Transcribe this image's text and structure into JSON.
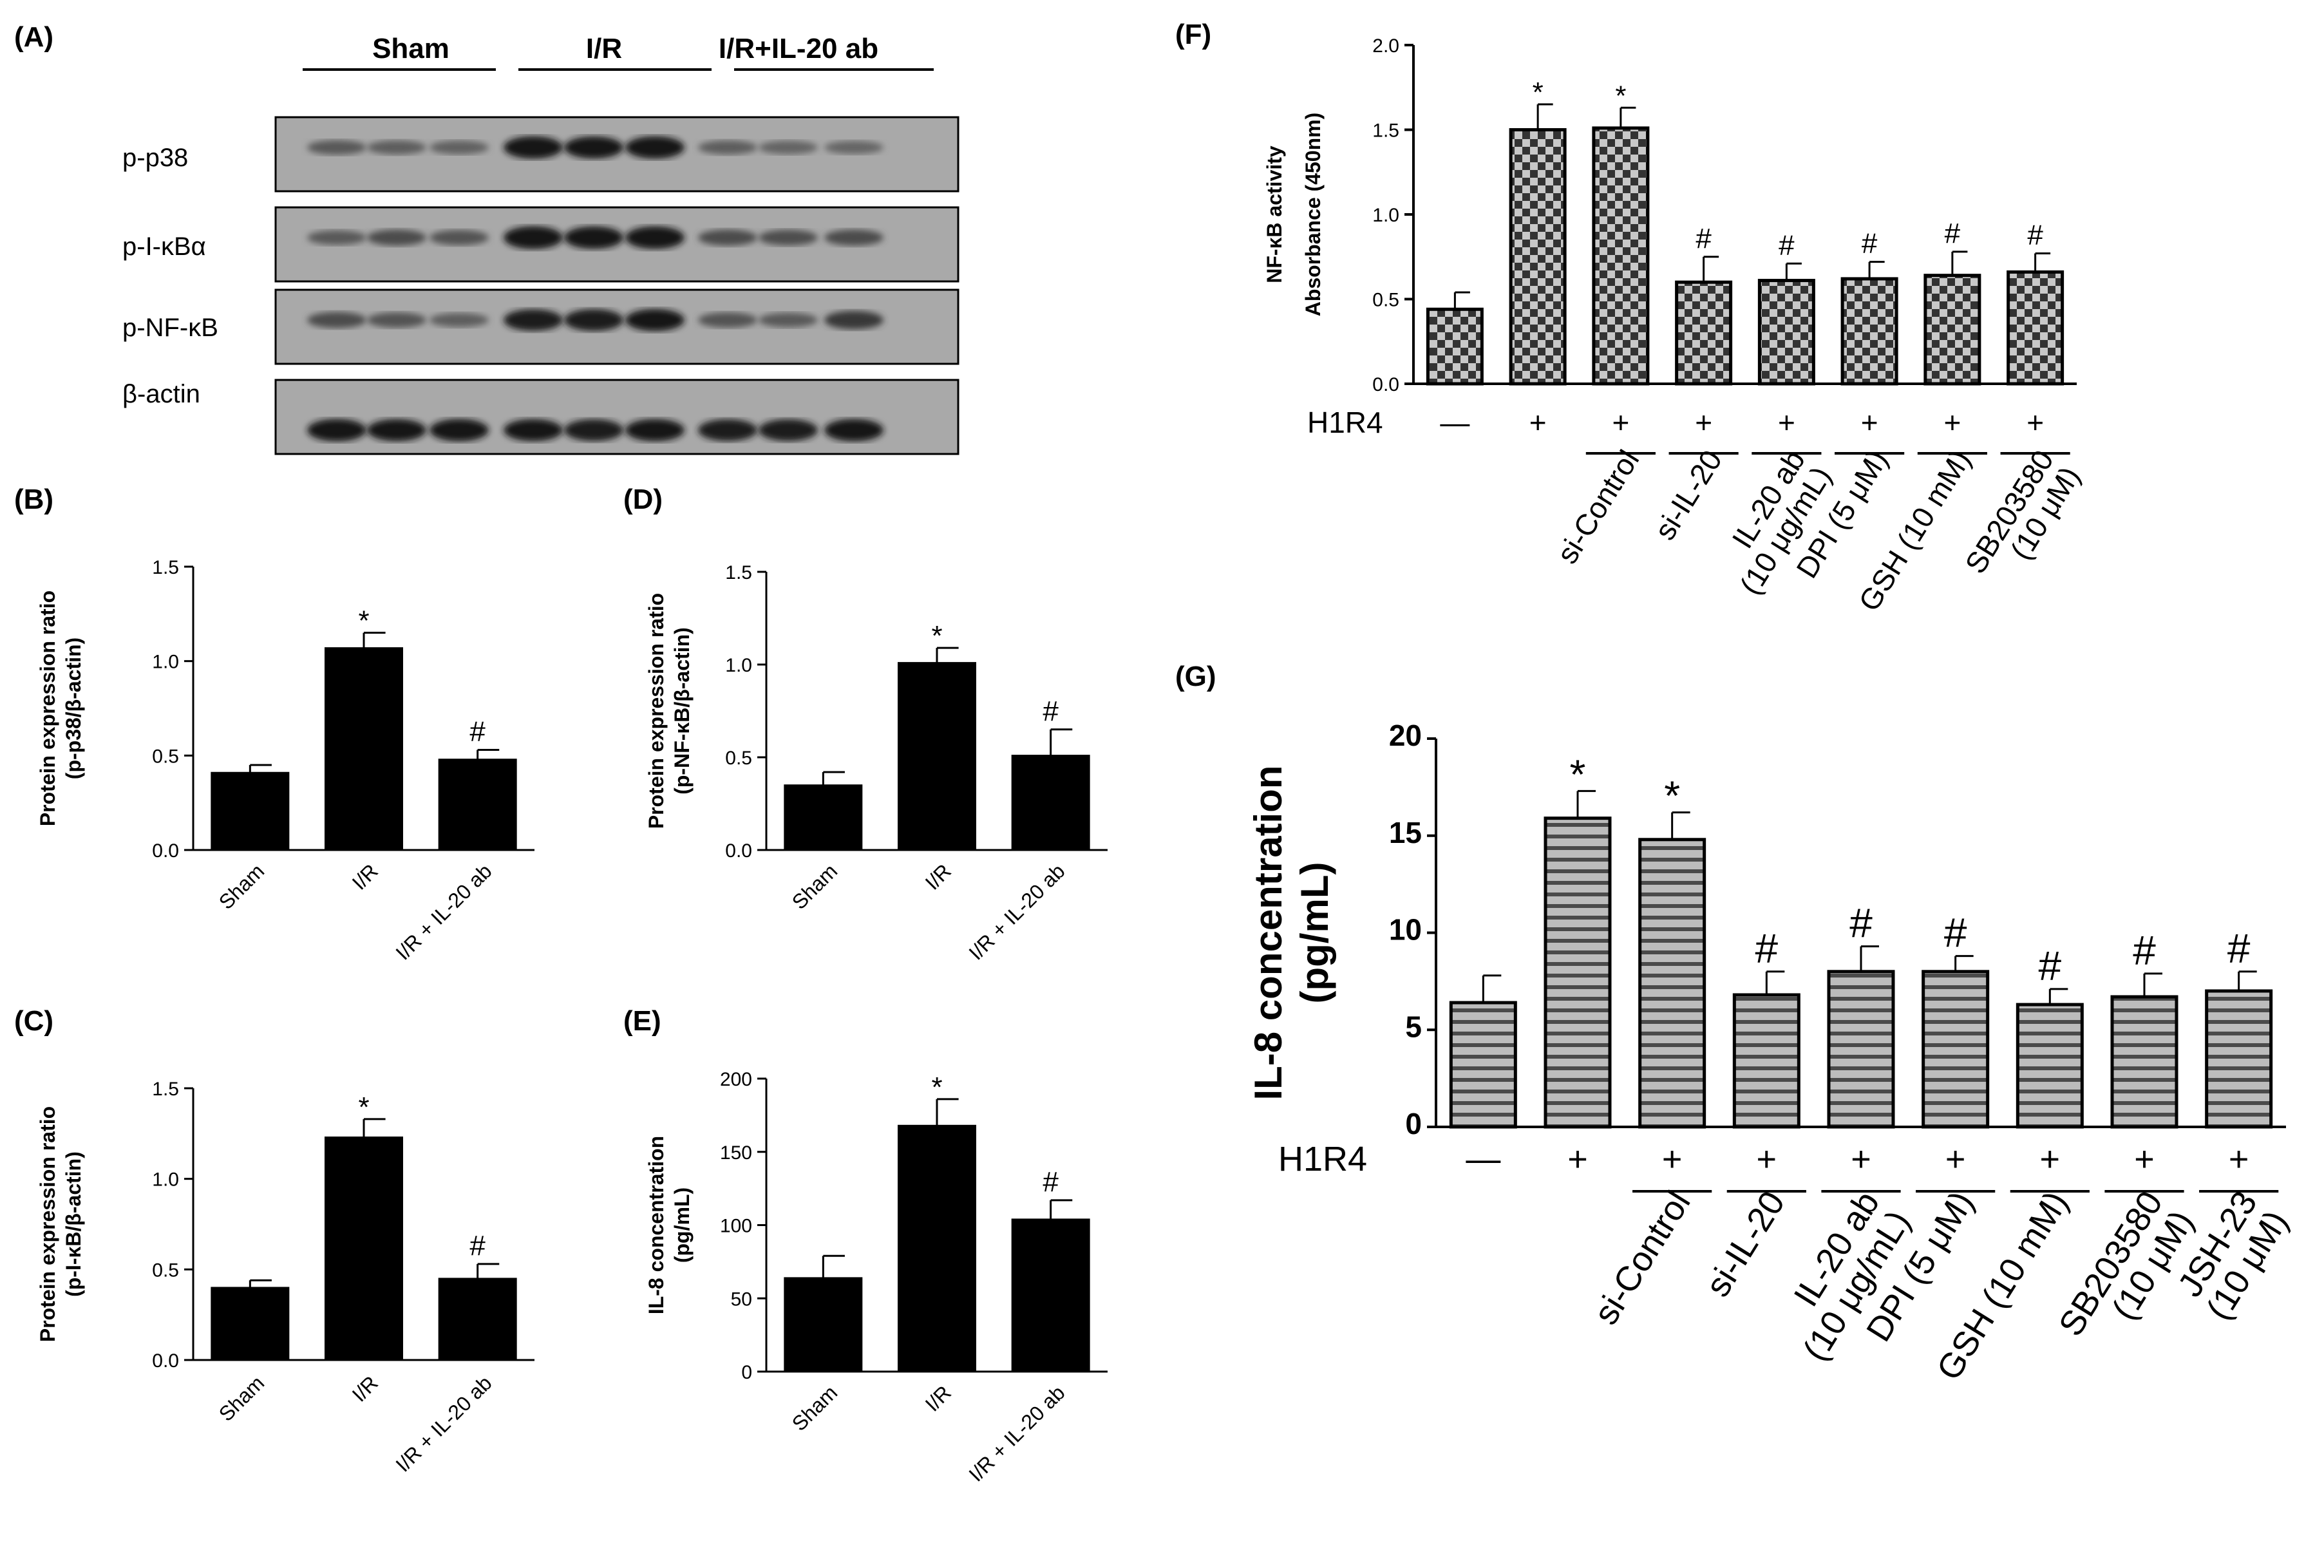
{
  "panels": {
    "A": "(A)",
    "B": "(B)",
    "C": "(C)",
    "D": "(D)",
    "E": "(E)",
    "F": "(F)",
    "G": "(G)"
  },
  "blot": {
    "groups": [
      "Sham",
      "I/R",
      "I/R+IL-20 ab"
    ],
    "rows": [
      "p-p38",
      "p-I-κBα",
      "p-NF-κB",
      "β-actin"
    ],
    "intensities": [
      [
        0.45,
        0.42,
        0.4,
        0.95,
        0.93,
        0.95,
        0.42,
        0.38,
        0.36
      ],
      [
        0.45,
        0.55,
        0.5,
        0.98,
        0.96,
        0.97,
        0.55,
        0.53,
        0.55
      ],
      [
        0.55,
        0.5,
        0.42,
        0.9,
        0.92,
        0.93,
        0.5,
        0.45,
        0.7
      ],
      [
        0.95,
        0.93,
        0.95,
        0.93,
        0.92,
        0.94,
        0.92,
        0.92,
        0.95
      ]
    ]
  },
  "h1r4_label": "H1R4",
  "chart_data": [
    {
      "id": "B",
      "type": "bar",
      "categories": [
        "Sham",
        "I/R",
        "I/R + IL-20 ab"
      ],
      "values": [
        0.41,
        1.07,
        0.48
      ],
      "errors": [
        0.04,
        0.08,
        0.05
      ],
      "annotations": [
        "",
        "*",
        "#"
      ],
      "ylabel": "Protein expression ratio\n(p-p38/β-actin)",
      "ylim": [
        0,
        1.5
      ],
      "yticks": [
        0.0,
        0.5,
        1.0,
        1.5
      ],
      "tick_labels": [
        "0.0",
        "0.5",
        "1.0",
        "1.5"
      ],
      "fill": "#000000"
    },
    {
      "id": "C",
      "type": "bar",
      "categories": [
        "Sham",
        "I/R",
        "I/R + IL-20 ab"
      ],
      "values": [
        0.4,
        1.23,
        0.45
      ],
      "errors": [
        0.04,
        0.1,
        0.08
      ],
      "annotations": [
        "",
        "*",
        "#"
      ],
      "ylabel": "Protein expression ratio\n(p-I-κB/β-actin)",
      "ylim": [
        0,
        1.5
      ],
      "yticks": [
        0.0,
        0.5,
        1.0,
        1.5
      ],
      "tick_labels": [
        "0.0",
        "0.5",
        "1.0",
        "1.5"
      ],
      "fill": "#000000"
    },
    {
      "id": "D",
      "type": "bar",
      "categories": [
        "Sham",
        "I/R",
        "I/R + IL-20 ab"
      ],
      "values": [
        0.35,
        1.01,
        0.51
      ],
      "errors": [
        0.07,
        0.08,
        0.14
      ],
      "annotations": [
        "",
        "*",
        "#"
      ],
      "ylabel": "Protein expression ratio\n(p-NF-κB/β-actin)",
      "ylim": [
        0,
        1.5
      ],
      "yticks": [
        0.0,
        0.5,
        1.0,
        1.5
      ],
      "tick_labels": [
        "0.0",
        "0.5",
        "1.0",
        "1.5"
      ],
      "fill": "#000000"
    },
    {
      "id": "E",
      "type": "bar",
      "categories": [
        "Sham",
        "I/R",
        "I/R + IL-20 ab"
      ],
      "values": [
        64,
        168,
        104
      ],
      "errors": [
        15,
        18,
        13
      ],
      "annotations": [
        "",
        "*",
        "#"
      ],
      "ylabel": "IL-8 concentration\n(pg/mL)",
      "ylim": [
        0,
        200
      ],
      "yticks": [
        0,
        50,
        100,
        150,
        200
      ],
      "tick_labels": [
        "0",
        "50",
        "100",
        "150",
        "200"
      ],
      "fill": "#000000"
    },
    {
      "id": "F",
      "type": "bar",
      "categories": [
        "—",
        "+",
        "si-Control",
        "si-IL-20",
        "IL-20 ab\n(10 μg/mL)",
        "DPI (5 μM)",
        "GSH (10 mM)",
        "SB203580\n(10 μM)"
      ],
      "h1r4": [
        "—",
        "+",
        "+",
        "+",
        "+",
        "+",
        "+",
        "+"
      ],
      "values": [
        0.44,
        1.5,
        1.51,
        0.6,
        0.61,
        0.62,
        0.64,
        0.66
      ],
      "errors": [
        0.1,
        0.15,
        0.12,
        0.15,
        0.1,
        0.1,
        0.14,
        0.11
      ],
      "annotations": [
        "",
        "*",
        "*",
        "#",
        "#",
        "#",
        "#",
        "#"
      ],
      "ylabel": "NF-κB activity\nAbsorbance (450nm)",
      "ylim": [
        0,
        2.0
      ],
      "yticks": [
        0.0,
        0.5,
        1.0,
        1.5,
        2.0
      ],
      "tick_labels": [
        "0.0",
        "0.5",
        "1.0",
        "1.5",
        "2.0"
      ],
      "fill": "checkerboard"
    },
    {
      "id": "G",
      "type": "bar",
      "categories": [
        "—",
        "+",
        "si-Control",
        "si-IL-20",
        "IL-20 ab\n(10 μg/mL)",
        "DPI (5 μM)",
        "GSH (10 mM)",
        "SB203580\n(10 μM)",
        "JSH-23\n(10 μM)"
      ],
      "h1r4": [
        "—",
        "+",
        "+",
        "+",
        "+",
        "+",
        "+",
        "+",
        "+"
      ],
      "values": [
        6.4,
        15.9,
        14.8,
        6.8,
        8.0,
        8.0,
        6.3,
        6.7,
        7.0
      ],
      "errors": [
        1.4,
        1.4,
        1.4,
        1.2,
        1.3,
        0.8,
        0.8,
        1.2,
        1.0
      ],
      "annotations": [
        "",
        "*",
        "*",
        "#",
        "#",
        "#",
        "#",
        "#",
        "#"
      ],
      "ylabel": "IL-8 concentration\n(pg/mL)",
      "ylim": [
        0,
        20
      ],
      "yticks": [
        0,
        5,
        10,
        15,
        20
      ],
      "tick_labels": [
        "0",
        "5",
        "10",
        "15",
        "20"
      ],
      "fill": "horizontal-stripes"
    }
  ]
}
